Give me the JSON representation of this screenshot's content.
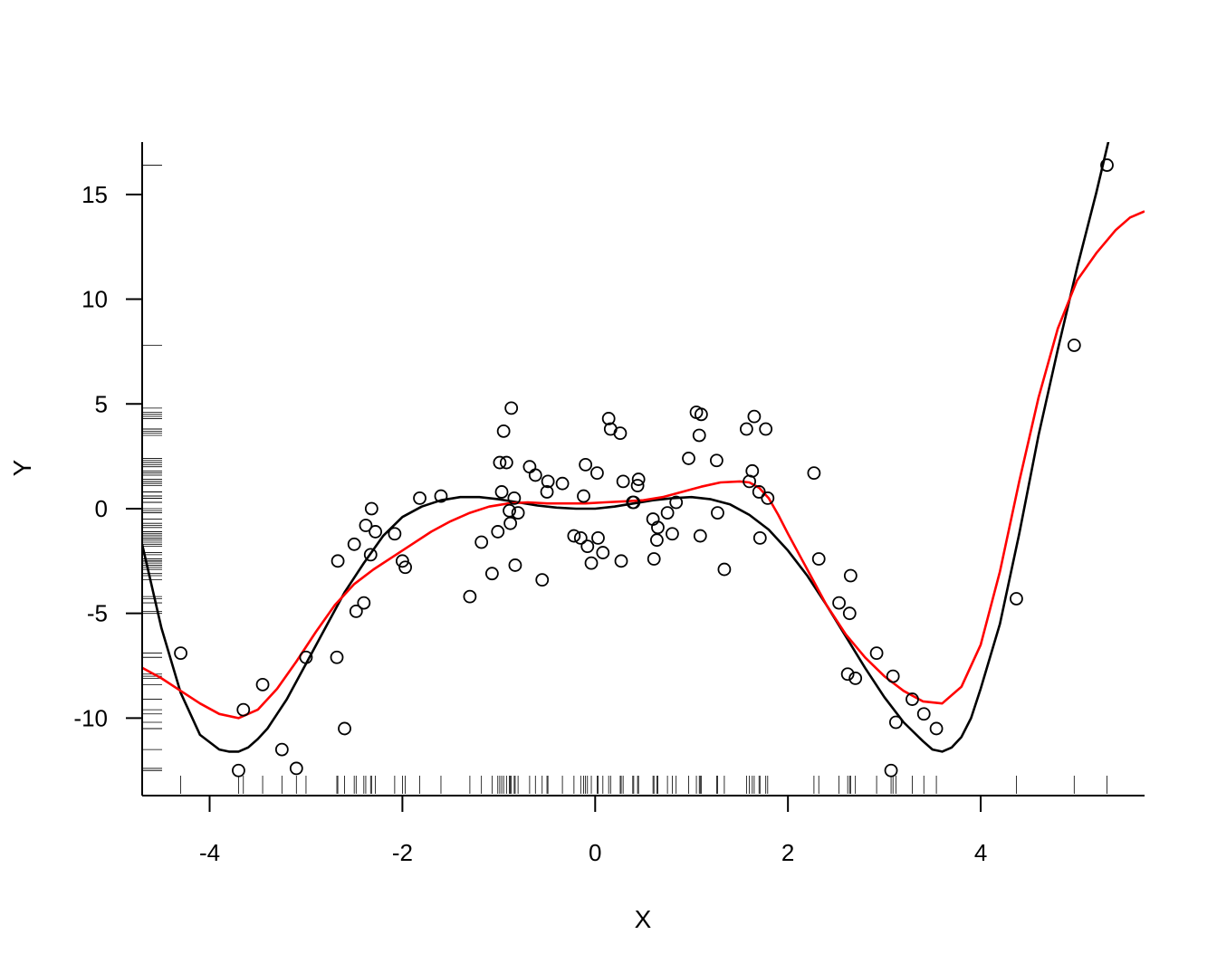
{
  "chart_data": {
    "type": "scatter",
    "title": "",
    "xlabel": "X",
    "ylabel": "Y",
    "xlim": [
      -4.7,
      5.7
    ],
    "ylim": [
      -13.7,
      17.5
    ],
    "x_ticks": [
      -4,
      -2,
      0,
      2,
      4
    ],
    "x_tick_labels": [
      "-4",
      "-2",
      "0",
      "2",
      "4"
    ],
    "y_ticks": [
      -10,
      -5,
      0,
      5,
      10,
      15
    ],
    "y_tick_labels": [
      "-10",
      "-5",
      "0",
      "5",
      "10",
      "15"
    ],
    "grid": false,
    "legend": "none",
    "rug": true,
    "colors": {
      "points": "#000000",
      "true_curve": "#000000",
      "fitted_curve": "#ff0000"
    },
    "points": {
      "x": [
        -4.3,
        -3.7,
        -3.65,
        -3.45,
        -3.25,
        -3.1,
        -3.0,
        -2.68,
        -2.67,
        -2.6,
        -2.5,
        -2.48,
        -2.4,
        -2.38,
        -2.33,
        -2.32,
        -2.28,
        -2.08,
        -2.0,
        -1.97,
        -1.82,
        -1.6,
        -1.3,
        -1.18,
        -1.07,
        -1.01,
        -0.99,
        -0.97,
        -0.95,
        -0.92,
        -0.89,
        -0.88,
        -0.87,
        -0.84,
        -0.83,
        -0.8,
        -0.68,
        -0.62,
        -0.55,
        -0.5,
        -0.49,
        -0.34,
        -0.22,
        -0.15,
        -0.12,
        -0.1,
        -0.08,
        -0.04,
        0.02,
        0.03,
        0.08,
        0.14,
        0.16,
        0.26,
        0.27,
        0.29,
        0.39,
        0.4,
        0.44,
        0.45,
        0.6,
        0.61,
        0.64,
        0.65,
        0.75,
        0.8,
        0.84,
        0.97,
        1.05,
        1.08,
        1.09,
        1.1,
        1.26,
        1.27,
        1.34,
        1.57,
        1.6,
        1.63,
        1.65,
        1.7,
        1.71,
        1.77,
        1.79,
        2.27,
        2.32,
        2.53,
        2.62,
        2.64,
        2.65,
        2.7,
        2.92,
        3.07,
        3.09,
        3.12,
        3.29,
        3.41,
        3.54,
        4.37,
        4.97,
        5.31
      ],
      "y": [
        -6.9,
        -12.5,
        -9.6,
        -8.4,
        -11.5,
        -12.4,
        -7.1,
        -7.1,
        -2.5,
        -10.5,
        -1.7,
        -4.9,
        -4.5,
        -0.8,
        -2.2,
        0.0,
        -1.1,
        -1.2,
        -2.5,
        -2.8,
        0.5,
        0.6,
        -4.2,
        -1.6,
        -3.1,
        -1.1,
        2.2,
        0.8,
        3.7,
        2.2,
        -0.1,
        -0.7,
        4.8,
        0.5,
        -2.7,
        -0.2,
        2.0,
        1.6,
        -3.4,
        0.8,
        1.3,
        1.2,
        -1.3,
        -1.4,
        0.6,
        2.1,
        -1.8,
        -2.6,
        1.7,
        -1.4,
        -2.1,
        4.3,
        3.8,
        3.6,
        -2.5,
        1.3,
        0.3,
        0.3,
        1.1,
        1.4,
        -0.5,
        -2.4,
        -1.5,
        -0.9,
        -0.2,
        -1.2,
        0.3,
        2.4,
        4.6,
        3.5,
        -1.3,
        4.5,
        2.3,
        -0.2,
        -2.9,
        3.8,
        1.3,
        1.8,
        4.4,
        0.8,
        -1.4,
        3.8,
        0.5,
        1.7,
        -2.4,
        -4.5,
        -7.9,
        -5.0,
        -3.2,
        -8.1,
        -6.9,
        -12.5,
        -8.0,
        -10.2,
        -9.1,
        -9.8,
        -10.5,
        -4.3,
        7.8,
        16.4
      ]
    },
    "series": [
      {
        "curve": "true_curve",
        "x": [
          -4.7,
          -4.5,
          -4.3,
          -4.1,
          -3.9,
          -3.8,
          -3.7,
          -3.6,
          -3.5,
          -3.4,
          -3.3,
          -3.2,
          -3.0,
          -2.8,
          -2.6,
          -2.4,
          -2.2,
          -2.0,
          -1.8,
          -1.6,
          -1.4,
          -1.2,
          -1.0,
          -0.8,
          -0.6,
          -0.4,
          -0.2,
          0.0,
          0.2,
          0.4,
          0.6,
          0.8,
          1.0,
          1.2,
          1.4,
          1.6,
          1.8,
          2.0,
          2.2,
          2.4,
          2.6,
          2.8,
          3.0,
          3.2,
          3.4,
          3.5,
          3.6,
          3.7,
          3.8,
          3.9,
          4.0,
          4.2,
          4.4,
          4.6,
          4.8,
          5.0,
          5.2,
          5.35
        ],
        "y": [
          -1.7,
          -5.7,
          -8.8,
          -10.8,
          -11.5,
          -11.6,
          -11.6,
          -11.4,
          -11.0,
          -10.5,
          -9.8,
          -9.1,
          -7.4,
          -5.7,
          -4.0,
          -2.6,
          -1.3,
          -0.4,
          0.1,
          0.4,
          0.55,
          0.55,
          0.45,
          0.3,
          0.15,
          0.05,
          0.0,
          0.0,
          0.1,
          0.25,
          0.4,
          0.5,
          0.55,
          0.45,
          0.2,
          -0.3,
          -1.0,
          -2.0,
          -3.2,
          -4.6,
          -6.1,
          -7.6,
          -9.0,
          -10.2,
          -11.1,
          -11.5,
          -11.6,
          -11.4,
          -10.9,
          -10.0,
          -8.6,
          -5.5,
          -1.2,
          3.5,
          7.6,
          11.5,
          15.1,
          18.0
        ]
      },
      {
        "curve": "fitted_curve",
        "x": [
          -4.7,
          -4.5,
          -4.3,
          -4.1,
          -3.9,
          -3.7,
          -3.5,
          -3.3,
          -3.1,
          -2.9,
          -2.7,
          -2.5,
          -2.3,
          -2.1,
          -1.9,
          -1.7,
          -1.5,
          -1.3,
          -1.1,
          -0.9,
          -0.7,
          -0.5,
          -0.3,
          -0.1,
          0.1,
          0.3,
          0.5,
          0.7,
          0.9,
          1.1,
          1.3,
          1.5,
          1.6,
          1.7,
          1.8,
          1.9,
          2.0,
          2.2,
          2.4,
          2.6,
          2.8,
          3.0,
          3.2,
          3.4,
          3.6,
          3.8,
          4.0,
          4.2,
          4.4,
          4.6,
          4.8,
          5.0,
          5.2,
          5.4,
          5.55,
          5.7
        ],
        "y": [
          -7.6,
          -8.1,
          -8.7,
          -9.3,
          -9.8,
          -10.0,
          -9.6,
          -8.6,
          -7.3,
          -5.9,
          -4.6,
          -3.6,
          -2.9,
          -2.3,
          -1.7,
          -1.1,
          -0.6,
          -0.2,
          0.1,
          0.25,
          0.3,
          0.25,
          0.25,
          0.25,
          0.3,
          0.35,
          0.4,
          0.55,
          0.8,
          1.05,
          1.25,
          1.3,
          1.25,
          1.0,
          0.5,
          -0.3,
          -1.2,
          -2.9,
          -4.6,
          -6.0,
          -7.1,
          -8.0,
          -8.7,
          -9.2,
          -9.3,
          -8.5,
          -6.5,
          -3.0,
          1.3,
          5.3,
          8.6,
          10.9,
          12.2,
          13.3,
          13.9,
          14.2
        ]
      }
    ]
  }
}
